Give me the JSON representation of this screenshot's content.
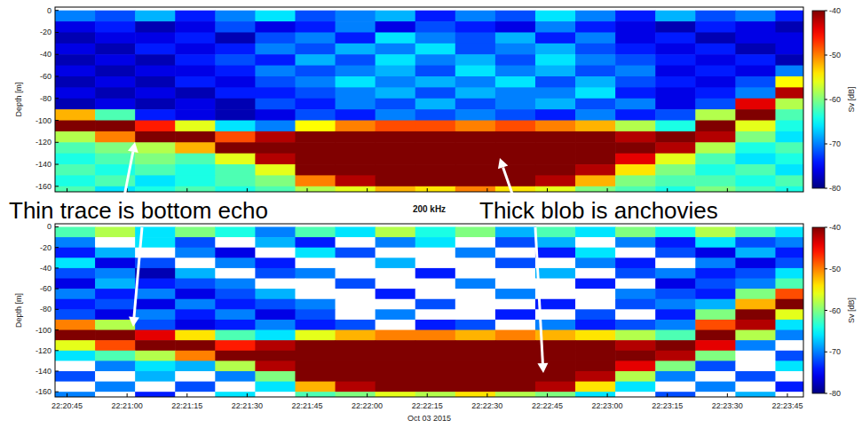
{
  "chart_data": [
    {
      "type": "heatmap",
      "y_label": "Depth [m]",
      "annotations": [
        "Thin trace is bottom echo",
        "Thick blob is anchovies"
      ],
      "xlim": [
        80442,
        80629
      ],
      "ylim": [
        -165,
        3
      ],
      "xticks": [
        80445,
        80460,
        80475,
        80490,
        80505,
        80520,
        80535,
        80550,
        80565,
        80580,
        80595,
        80610,
        80625
      ],
      "yticks": [
        0,
        -20,
        -40,
        -60,
        -80,
        -100,
        -120,
        -140,
        -160
      ],
      "tick_labels": "y",
      "clim": [
        -80,
        -40
      ],
      "cticks": [
        -40,
        -50,
        -60,
        -70,
        -80
      ],
      "clabel": "Sv [dB]",
      "x": [
        80447,
        80457,
        80467,
        80477,
        80487,
        80497,
        80507,
        80517,
        80527,
        80537,
        80547,
        80557,
        80567,
        80577,
        80587,
        80597,
        80607,
        80617,
        80627
      ],
      "y": [
        -5,
        -15,
        -25,
        -35,
        -45,
        -55,
        -65,
        -75,
        -85,
        -95,
        -105,
        -115,
        -125,
        -135,
        -145,
        -155,
        -165
      ],
      "cells": [
        [
          -70,
          -72,
          -68,
          -74,
          -70,
          -66,
          -72,
          -70,
          -68,
          -74,
          -70,
          -72,
          -66,
          -70,
          -74,
          -68,
          -72,
          -70,
          -74
        ],
        [
          -76,
          -74,
          -78,
          -76,
          -72,
          -76,
          -74,
          -70,
          -76,
          -72,
          -74,
          -76,
          -70,
          -74,
          -76,
          -78,
          -74,
          -76,
          -78
        ],
        [
          -78,
          -76,
          -76,
          -74,
          -78,
          -72,
          -70,
          -74,
          -66,
          -70,
          -72,
          -68,
          -74,
          -70,
          -76,
          -74,
          -78,
          -76,
          -76
        ],
        [
          -76,
          -78,
          -74,
          -76,
          -74,
          -70,
          -72,
          -68,
          -70,
          -66,
          -72,
          -70,
          -68,
          -72,
          -74,
          -76,
          -74,
          -78,
          -76
        ],
        [
          -78,
          -76,
          -78,
          -74,
          -72,
          -74,
          -68,
          -72,
          -66,
          -70,
          -68,
          -72,
          -66,
          -70,
          -72,
          -74,
          -76,
          -74,
          -78
        ],
        [
          -76,
          -78,
          -76,
          -76,
          -74,
          -70,
          -72,
          -70,
          -68,
          -72,
          -66,
          -70,
          -68,
          -72,
          -70,
          -76,
          -74,
          -76,
          -70
        ],
        [
          -78,
          -76,
          -78,
          -74,
          -76,
          -72,
          -70,
          -66,
          -70,
          -68,
          -70,
          -66,
          -72,
          -68,
          -72,
          -74,
          -76,
          -72,
          -55
        ],
        [
          -76,
          -78,
          -76,
          -78,
          -74,
          -74,
          -72,
          -70,
          -68,
          -72,
          -68,
          -70,
          -70,
          -66,
          -74,
          -76,
          -74,
          -70,
          -42
        ],
        [
          -78,
          -76,
          -78,
          -76,
          -78,
          -72,
          -74,
          -70,
          -72,
          -68,
          -72,
          -70,
          -68,
          -72,
          -70,
          -76,
          -72,
          -44,
          -58
        ],
        [
          -52,
          -62,
          -74,
          -76,
          -78,
          -76,
          -72,
          -74,
          -70,
          -72,
          -70,
          -72,
          -74,
          -70,
          -74,
          -72,
          -58,
          -40,
          -62
        ],
        [
          -40,
          -40,
          -46,
          -56,
          -66,
          -70,
          -55,
          -50,
          -48,
          -48,
          -50,
          -48,
          -50,
          -52,
          -58,
          -64,
          -40,
          -56,
          -64
        ],
        [
          -58,
          -50,
          -40,
          -40,
          -48,
          -42,
          -40,
          -40,
          -40,
          -40,
          -40,
          -40,
          -40,
          -40,
          -42,
          -40,
          -42,
          -60,
          -66
        ],
        [
          -62,
          -60,
          -58,
          -52,
          -40,
          -40,
          -40,
          -40,
          -40,
          -40,
          -40,
          -40,
          -40,
          -40,
          -40,
          -42,
          -58,
          -64,
          -62
        ],
        [
          -64,
          -62,
          -60,
          -62,
          -56,
          -42,
          -40,
          -40,
          -40,
          -40,
          -40,
          -40,
          -40,
          -40,
          -44,
          -56,
          -62,
          -66,
          -64
        ],
        [
          -62,
          -64,
          -62,
          -64,
          -62,
          -56,
          -40,
          -40,
          -40,
          -40,
          -40,
          -40,
          -40,
          -42,
          -54,
          -60,
          -64,
          -62,
          -66
        ],
        [
          -64,
          -62,
          -66,
          -64,
          -62,
          -60,
          -50,
          -42,
          -40,
          -40,
          -40,
          -40,
          -42,
          -52,
          -60,
          -62,
          -62,
          -64,
          -62
        ],
        [
          -62,
          -66,
          -64,
          -62,
          -64,
          -62,
          -58,
          -56,
          -52,
          -54,
          -50,
          -54,
          -56,
          -60,
          -62,
          -64,
          -60,
          -62,
          -64
        ]
      ]
    },
    {
      "type": "heatmap",
      "title": "200 kHz",
      "y_label": "Depth [m]",
      "x_label": "Oct 03 2015",
      "xlim": [
        80442,
        80629
      ],
      "ylim": [
        -165,
        3
      ],
      "xticks": [
        {
          "value": 80445,
          "label": "22:20:45"
        },
        {
          "value": 80460,
          "label": "22:21:00"
        },
        {
          "value": 80475,
          "label": "22:21:15"
        },
        {
          "value": 80490,
          "label": "22:21:30"
        },
        {
          "value": 80505,
          "label": "22:21:45"
        },
        {
          "value": 80520,
          "label": "22:22:00"
        },
        {
          "value": 80535,
          "label": "22:22:15"
        },
        {
          "value": 80550,
          "label": "22:22:30"
        },
        {
          "value": 80565,
          "label": "22:22:45"
        },
        {
          "value": 80580,
          "label": "22:23:00"
        },
        {
          "value": 80595,
          "label": "22:23:15"
        },
        {
          "value": 80610,
          "label": "22:23:30"
        },
        {
          "value": 80625,
          "label": "22:23:45"
        }
      ],
      "yticks": [
        0,
        -20,
        -40,
        -60,
        -80,
        -100,
        -120,
        -140,
        -160
      ],
      "clim": [
        -80,
        -40
      ],
      "cticks": [
        -40,
        -50,
        -60,
        -70,
        -80
      ],
      "clabel": "Sv [dB]",
      "x": [
        80447,
        80457,
        80467,
        80477,
        80487,
        80497,
        80507,
        80517,
        80527,
        80537,
        80547,
        80557,
        80567,
        80577,
        80587,
        80597,
        80607,
        80617,
        80627
      ],
      "y": [
        -5,
        -15,
        -25,
        -35,
        -45,
        -55,
        -65,
        -75,
        -85,
        -95,
        -105,
        -115,
        -125,
        -135,
        -145,
        -155,
        -165
      ],
      "cells": [
        [
          -62,
          -58,
          -66,
          -60,
          -64,
          -70,
          -62,
          -66,
          -58,
          -64,
          -60,
          -68,
          -62,
          -66,
          -60,
          -64,
          -58,
          -62,
          -66
        ],
        [
          -70,
          -85,
          -66,
          -72,
          -85,
          -68,
          -74,
          -85,
          -70,
          -66,
          -85,
          -72,
          -68,
          -85,
          -70,
          -74,
          -66,
          -72,
          -70
        ],
        [
          -74,
          -68,
          -85,
          -70,
          -76,
          -85,
          -66,
          -72,
          -85,
          -85,
          -70,
          -85,
          -74,
          -66,
          -85,
          -72,
          -76,
          -68,
          -74
        ],
        [
          -66,
          -76,
          -72,
          -85,
          -70,
          -74,
          -85,
          -85,
          -68,
          -85,
          -85,
          -72,
          -85,
          -70,
          -74,
          -85,
          -70,
          -76,
          -72
        ],
        [
          -72,
          -70,
          -78,
          -68,
          -85,
          -72,
          -70,
          -85,
          -85,
          -74,
          -85,
          -85,
          -68,
          -85,
          -72,
          -70,
          -74,
          -72,
          -66
        ],
        [
          -76,
          -68,
          -74,
          -72,
          -70,
          -85,
          -85,
          -72,
          -85,
          -85,
          -70,
          -85,
          -85,
          -74,
          -85,
          -76,
          -72,
          -70,
          -62
        ],
        [
          -70,
          -74,
          -70,
          -76,
          -72,
          -68,
          -85,
          -85,
          -74,
          -85,
          -85,
          -70,
          -85,
          -85,
          -70,
          -72,
          -74,
          -60,
          -48
        ],
        [
          -74,
          -72,
          -76,
          -70,
          -74,
          -72,
          -70,
          -85,
          -85,
          -72,
          -85,
          -85,
          -74,
          -85,
          -72,
          -70,
          -68,
          -52,
          -40
        ],
        [
          -72,
          -76,
          -70,
          -74,
          -70,
          -76,
          -72,
          -85,
          -70,
          -85,
          -85,
          -74,
          -85,
          -72,
          -85,
          -74,
          -60,
          -40,
          -56
        ],
        [
          -50,
          -58,
          -72,
          -76,
          -74,
          -70,
          -74,
          -72,
          -85,
          -74,
          -72,
          -85,
          -70,
          -74,
          -72,
          -70,
          -48,
          -42,
          -66
        ],
        [
          -40,
          -40,
          -44,
          -54,
          -62,
          -66,
          -56,
          -52,
          -50,
          -50,
          -52,
          -50,
          -52,
          -54,
          -58,
          -62,
          -40,
          -58,
          -70
        ],
        [
          -56,
          -48,
          -40,
          -40,
          -46,
          -42,
          -40,
          -40,
          -40,
          -40,
          -40,
          -40,
          -40,
          -40,
          -42,
          -40,
          -44,
          -70,
          -85
        ],
        [
          -66,
          -62,
          -58,
          -50,
          -40,
          -40,
          -40,
          -40,
          -40,
          -40,
          -40,
          -40,
          -40,
          -40,
          -40,
          -42,
          -60,
          -85,
          -72
        ],
        [
          -85,
          -70,
          -66,
          -68,
          -58,
          -42,
          -40,
          -40,
          -40,
          -40,
          -40,
          -40,
          -40,
          -40,
          -44,
          -60,
          -72,
          -85,
          -66
        ],
        [
          -72,
          -85,
          -68,
          -85,
          -70,
          -60,
          -40,
          -40,
          -40,
          -40,
          -40,
          -40,
          -40,
          -42,
          -58,
          -70,
          -85,
          -72,
          -85
        ],
        [
          -85,
          -70,
          -85,
          -72,
          -85,
          -66,
          -52,
          -42,
          -40,
          -40,
          -40,
          -40,
          -42,
          -54,
          -66,
          -85,
          -70,
          -85,
          -74
        ],
        [
          -70,
          -85,
          -74,
          -85,
          -66,
          -85,
          -62,
          -60,
          -56,
          -58,
          -54,
          -58,
          -60,
          -66,
          -85,
          -72,
          -85,
          -68,
          -85
        ]
      ]
    }
  ]
}
